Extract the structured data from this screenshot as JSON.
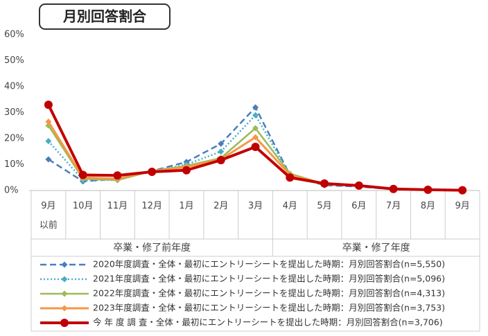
{
  "chart_data": {
    "type": "line",
    "title": "月別回答割合",
    "categories": [
      "9月\n以前",
      "10月",
      "11月",
      "12月",
      "1月",
      "2月",
      "3月",
      "4月",
      "5月",
      "6月",
      "7月",
      "8月",
      "9月"
    ],
    "groups": [
      "卒業・修了前年度",
      "卒業・修了年度"
    ],
    "ylim": [
      0,
      60
    ],
    "yticks": [
      {
        "value": 0,
        "label": "0%"
      },
      {
        "value": 10,
        "label": "10%"
      },
      {
        "value": 20,
        "label": "20%"
      },
      {
        "value": 30,
        "label": "30%"
      },
      {
        "value": 40,
        "label": "40%"
      },
      {
        "value": 50,
        "label": "50%"
      },
      {
        "value": 60,
        "label": "60%"
      }
    ],
    "series": [
      {
        "name": "2020年度調査・全体・最初にエントリーシートを提出した時期：月別回答割合(n=5,550)",
        "color": "#4a7ebb",
        "dash": "dashed",
        "marker": "diamond",
        "values": [
          12,
          3.5,
          4.5,
          7.5,
          11,
          18,
          32,
          6,
          2,
          1.5,
          0.5,
          0.2,
          0.1
        ]
      },
      {
        "name": "2021年度調査・全体・最初にエントリーシートを提出した時期：月別回答割合(n=5,096)",
        "color": "#4bacc6",
        "dash": "dotted",
        "marker": "diamond",
        "values": [
          19,
          4,
          4,
          7.5,
          10,
          15,
          29,
          6,
          2.3,
          1.7,
          0.6,
          0.2,
          0.1
        ]
      },
      {
        "name": "2022年度調査・全体・最初にエントリーシートを提出した時期：月別回答割合(n=4,313)",
        "color": "#9bbb59",
        "dash": "solid",
        "marker": "diamond",
        "values": [
          25,
          4.5,
          4,
          7.5,
          9.5,
          12.5,
          24,
          6.5,
          2.5,
          1.8,
          0.6,
          0.2,
          0.1
        ]
      },
      {
        "name": "2023年度調査・全体・最初にエントリーシートを提出した時期：月別回答割合(n=3,753)",
        "color": "#f79646",
        "dash": "solid",
        "marker": "diamond",
        "values": [
          26.5,
          5,
          4.5,
          7.5,
          9,
          12,
          20.5,
          6,
          2.5,
          1.8,
          0.6,
          0.2,
          0.1
        ]
      },
      {
        "name": "今 年 度 調 査・全体・最初にエントリーシートを提出した時期：月別回答割合(n=3,706)",
        "color": "#c00000",
        "dash": "solid",
        "marker": "circle",
        "values": [
          33,
          6,
          5.8,
          7.2,
          7.8,
          11.7,
          16.8,
          5,
          2.7,
          1.9,
          0.6,
          0.3,
          0.1
        ]
      }
    ]
  }
}
